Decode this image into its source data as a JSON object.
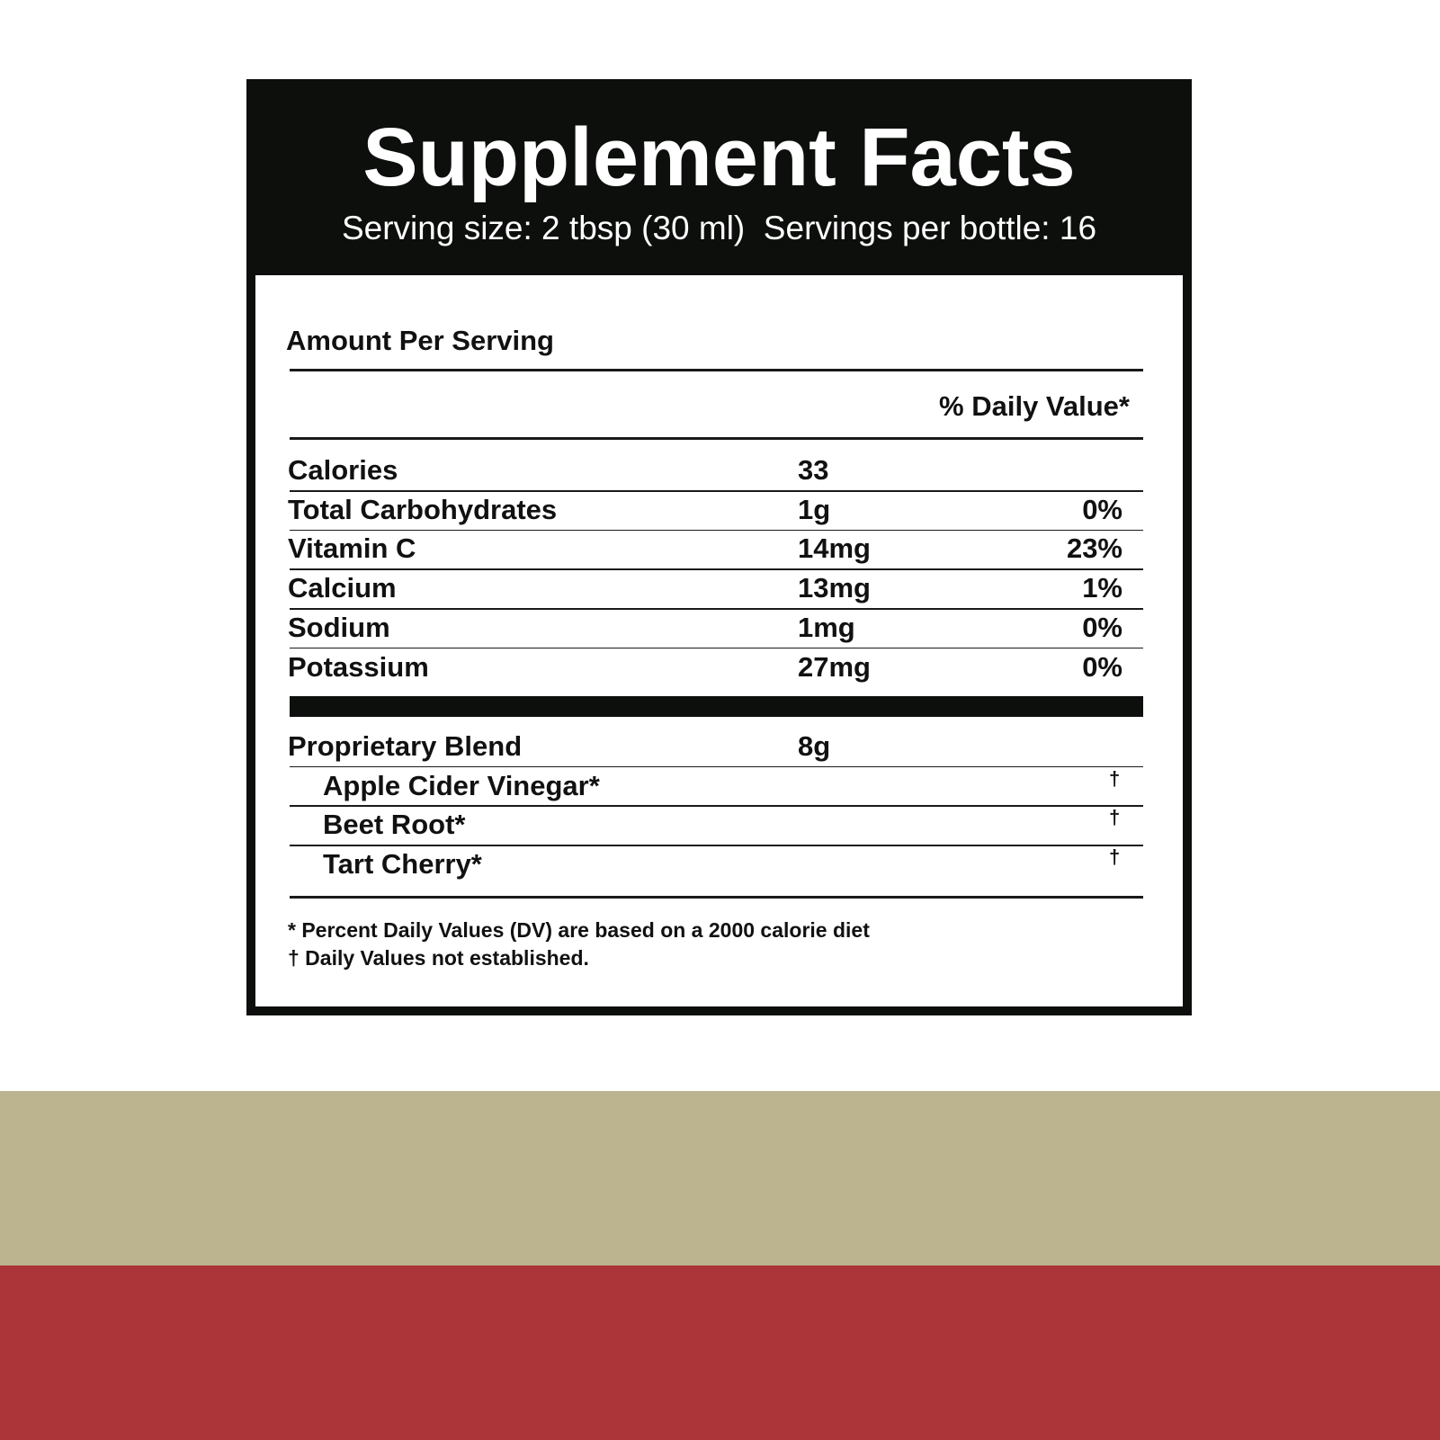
{
  "header": {
    "title": "Supplement Facts",
    "serving": "Serving size: 2 tbsp (30 ml)  Servings per bottle: 16"
  },
  "table": {
    "amount_heading": "Amount Per Serving",
    "dv_heading": "% Daily Value*",
    "rows": [
      [
        "Calories",
        "33",
        null
      ],
      [
        "Total Carbohydrates",
        "1g",
        "0%"
      ],
      [
        "Vitamin C",
        "14mg",
        "23%"
      ],
      [
        "Calcium",
        "13mg",
        "1%"
      ],
      [
        "Sodium",
        "1mg",
        "0%"
      ],
      [
        "Potassium",
        "27mg",
        "0%"
      ]
    ],
    "blend": {
      "name": "Proprietary Blend",
      "amount": "8g",
      "ingredients": [
        [
          "Apple Cider Vinegar*",
          "†"
        ],
        [
          "Beet Root*",
          "†"
        ],
        [
          "Tart Cherry*",
          "†"
        ]
      ]
    }
  },
  "footnotes": [
    "* Percent Daily Values (DV) are based on a 2000 calorie diet",
    "† Daily Values not established."
  ]
}
